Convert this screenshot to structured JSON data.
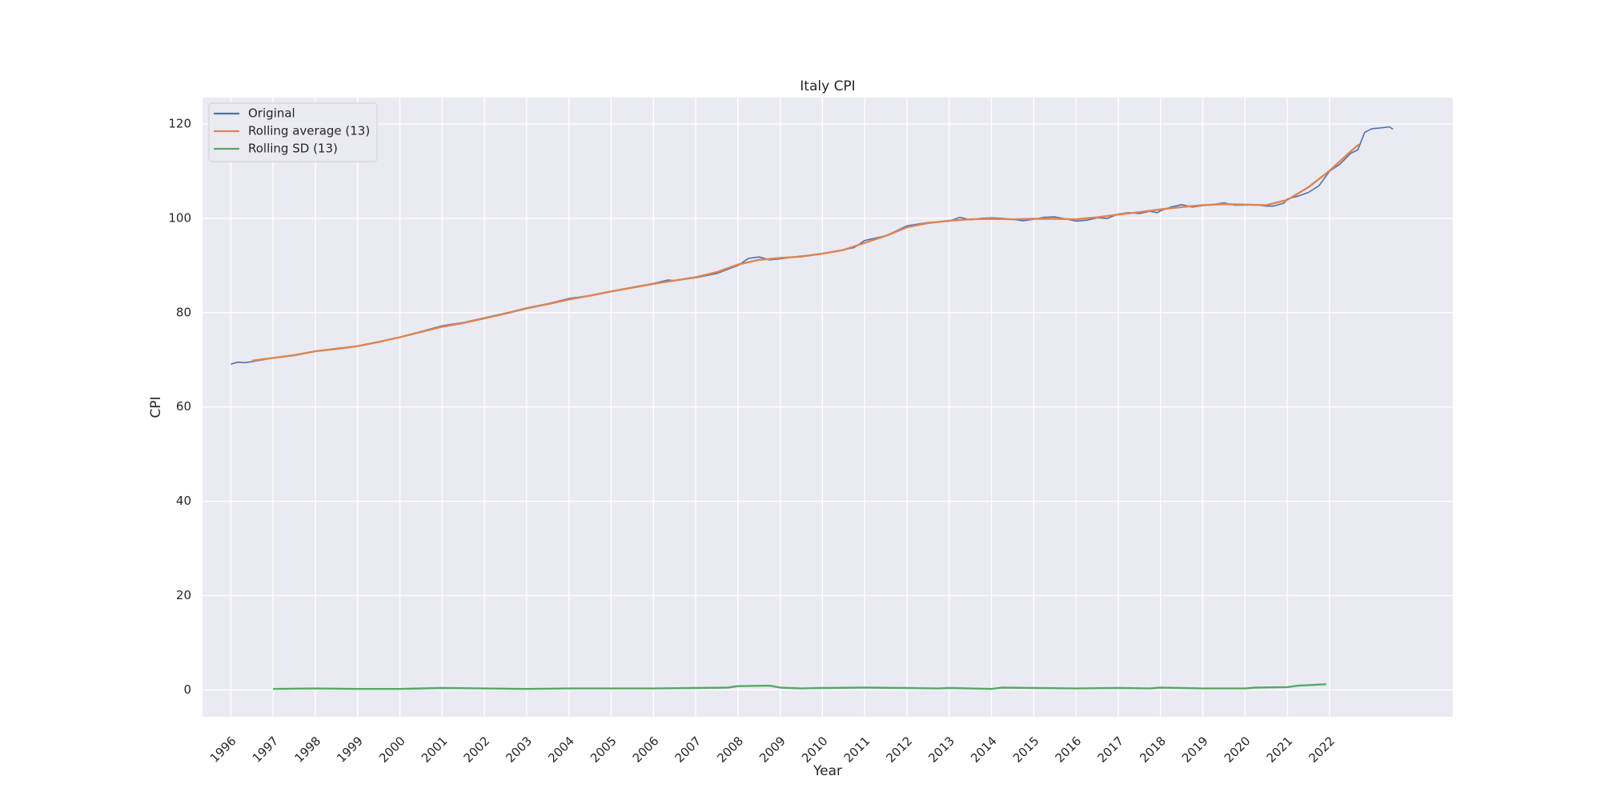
{
  "chart_data": {
    "type": "line",
    "title": "Italy CPI",
    "xlabel": "Year",
    "ylabel": "CPI",
    "xlim": [
      1995.33,
      2024.92
    ],
    "ylim": [
      -5.7,
      125.6
    ],
    "x_ticks": [
      "1996",
      "1997",
      "1998",
      "1999",
      "2000",
      "2001",
      "2002",
      "2003",
      "2004",
      "2005",
      "2006",
      "2007",
      "2008",
      "2009",
      "2010",
      "2011",
      "2012",
      "2013",
      "2014",
      "2015",
      "2016",
      "2017",
      "2018",
      "2019",
      "2020",
      "2021",
      "2022"
    ],
    "y_ticks": [
      0,
      20,
      40,
      60,
      80,
      100,
      120
    ],
    "grid": true,
    "legend_position": "top-left",
    "colors": {
      "original": "#4c72b0",
      "rolling_average": "#dd8452",
      "rolling_sd": "#55a868",
      "plot_bg": "#eaeaf2",
      "grid": "#ffffff"
    },
    "series": [
      {
        "name": "Original",
        "points": [
          [
            1996.0,
            69.1
          ],
          [
            1996.17,
            69.5
          ],
          [
            1996.33,
            69.4
          ],
          [
            1996.5,
            69.6
          ],
          [
            1996.75,
            70.0
          ],
          [
            1997.0,
            70.4
          ],
          [
            1997.5,
            70.9
          ],
          [
            1998.0,
            71.8
          ],
          [
            1998.5,
            72.4
          ],
          [
            1999.0,
            72.9
          ],
          [
            1999.5,
            73.8
          ],
          [
            2000.0,
            74.8
          ],
          [
            2000.5,
            76.0
          ],
          [
            2001.0,
            77.2
          ],
          [
            2001.5,
            77.9
          ],
          [
            2002.0,
            78.9
          ],
          [
            2002.5,
            79.9
          ],
          [
            2003.0,
            81.0
          ],
          [
            2003.5,
            81.9
          ],
          [
            2004.0,
            83.0
          ],
          [
            2004.5,
            83.6
          ],
          [
            2005.0,
            84.5
          ],
          [
            2005.5,
            85.4
          ],
          [
            2006.0,
            86.2
          ],
          [
            2006.33,
            86.9
          ],
          [
            2006.5,
            86.8
          ],
          [
            2007.0,
            87.4
          ],
          [
            2007.5,
            88.3
          ],
          [
            2008.0,
            90.0
          ],
          [
            2008.25,
            91.5
          ],
          [
            2008.5,
            91.8
          ],
          [
            2008.75,
            91.2
          ],
          [
            2009.0,
            91.4
          ],
          [
            2009.5,
            92.0
          ],
          [
            2010.0,
            92.5
          ],
          [
            2010.5,
            93.3
          ],
          [
            2010.75,
            93.8
          ],
          [
            2011.0,
            95.3
          ],
          [
            2011.5,
            96.3
          ],
          [
            2012.0,
            98.4
          ],
          [
            2012.5,
            99.1
          ],
          [
            2013.0,
            99.4
          ],
          [
            2013.25,
            100.2
          ],
          [
            2013.5,
            99.7
          ],
          [
            2013.75,
            100.0
          ],
          [
            2014.0,
            100.1
          ],
          [
            2014.25,
            100.0
          ],
          [
            2014.5,
            99.8
          ],
          [
            2014.75,
            99.5
          ],
          [
            2015.0,
            99.8
          ],
          [
            2015.25,
            100.2
          ],
          [
            2015.5,
            100.3
          ],
          [
            2015.75,
            99.9
          ],
          [
            2016.0,
            99.4
          ],
          [
            2016.25,
            99.6
          ],
          [
            2016.5,
            100.1
          ],
          [
            2016.75,
            100.0
          ],
          [
            2017.0,
            100.9
          ],
          [
            2017.25,
            101.2
          ],
          [
            2017.5,
            101.0
          ],
          [
            2017.75,
            101.5
          ],
          [
            2017.92,
            101.2
          ],
          [
            2018.0,
            101.6
          ],
          [
            2018.25,
            102.4
          ],
          [
            2018.5,
            102.9
          ],
          [
            2018.75,
            102.4
          ],
          [
            2019.0,
            102.7
          ],
          [
            2019.25,
            102.9
          ],
          [
            2019.5,
            103.3
          ],
          [
            2019.75,
            102.8
          ],
          [
            2020.0,
            102.8
          ],
          [
            2020.25,
            102.9
          ],
          [
            2020.5,
            102.6
          ],
          [
            2020.67,
            102.6
          ],
          [
            2020.92,
            103.2
          ],
          [
            2021.0,
            104.1
          ],
          [
            2021.25,
            104.7
          ],
          [
            2021.5,
            105.5
          ],
          [
            2021.75,
            106.9
          ],
          [
            2022.0,
            110.0
          ],
          [
            2022.25,
            111.5
          ],
          [
            2022.5,
            113.8
          ],
          [
            2022.67,
            114.5
          ],
          [
            2022.83,
            118.2
          ],
          [
            2023.0,
            119.0
          ],
          [
            2023.25,
            119.2
          ],
          [
            2023.42,
            119.4
          ],
          [
            2023.5,
            118.9
          ]
        ]
      },
      {
        "name": "Rolling average (13)",
        "points": [
          [
            1996.5,
            69.8
          ],
          [
            1997.0,
            70.4
          ],
          [
            1997.5,
            71.0
          ],
          [
            1998.0,
            71.8
          ],
          [
            1998.5,
            72.3
          ],
          [
            1999.0,
            72.9
          ],
          [
            1999.5,
            73.8
          ],
          [
            2000.0,
            74.8
          ],
          [
            2000.5,
            75.9
          ],
          [
            2001.0,
            77.0
          ],
          [
            2001.5,
            77.8
          ],
          [
            2002.0,
            78.8
          ],
          [
            2002.5,
            79.8
          ],
          [
            2003.0,
            80.9
          ],
          [
            2003.5,
            81.8
          ],
          [
            2004.0,
            82.8
          ],
          [
            2004.5,
            83.6
          ],
          [
            2005.0,
            84.5
          ],
          [
            2005.5,
            85.3
          ],
          [
            2006.0,
            86.1
          ],
          [
            2006.5,
            86.8
          ],
          [
            2007.0,
            87.5
          ],
          [
            2007.5,
            88.6
          ],
          [
            2008.0,
            90.2
          ],
          [
            2008.5,
            91.2
          ],
          [
            2009.0,
            91.6
          ],
          [
            2009.5,
            91.9
          ],
          [
            2010.0,
            92.5
          ],
          [
            2010.5,
            93.3
          ],
          [
            2011.0,
            94.8
          ],
          [
            2011.5,
            96.3
          ],
          [
            2012.0,
            98.1
          ],
          [
            2012.5,
            99.0
          ],
          [
            2013.0,
            99.5
          ],
          [
            2013.5,
            99.8
          ],
          [
            2014.0,
            99.9
          ],
          [
            2014.5,
            99.8
          ],
          [
            2015.0,
            99.9
          ],
          [
            2015.5,
            99.9
          ],
          [
            2016.0,
            99.8
          ],
          [
            2016.5,
            100.2
          ],
          [
            2017.0,
            100.8
          ],
          [
            2017.5,
            101.3
          ],
          [
            2018.0,
            101.9
          ],
          [
            2018.5,
            102.4
          ],
          [
            2019.0,
            102.8
          ],
          [
            2019.5,
            103.0
          ],
          [
            2020.0,
            102.9
          ],
          [
            2020.5,
            102.8
          ],
          [
            2021.0,
            103.9
          ],
          [
            2021.5,
            106.6
          ],
          [
            2022.0,
            110.1
          ],
          [
            2022.5,
            114.2
          ],
          [
            2022.7,
            115.7
          ]
        ]
      },
      {
        "name": "Rolling SD (13)",
        "points": [
          [
            1997.0,
            0.2
          ],
          [
            1998.0,
            0.3
          ],
          [
            1999.0,
            0.2
          ],
          [
            2000.0,
            0.2
          ],
          [
            2001.0,
            0.4
          ],
          [
            2002.0,
            0.3
          ],
          [
            2003.0,
            0.2
          ],
          [
            2004.0,
            0.3
          ],
          [
            2005.0,
            0.3
          ],
          [
            2006.0,
            0.3
          ],
          [
            2007.0,
            0.4
          ],
          [
            2007.75,
            0.5
          ],
          [
            2008.0,
            0.8
          ],
          [
            2008.75,
            0.9
          ],
          [
            2009.0,
            0.5
          ],
          [
            2009.5,
            0.3
          ],
          [
            2010.0,
            0.4
          ],
          [
            2011.0,
            0.5
          ],
          [
            2012.0,
            0.4
          ],
          [
            2012.75,
            0.3
          ],
          [
            2013.0,
            0.4
          ],
          [
            2014.0,
            0.2
          ],
          [
            2014.25,
            0.5
          ],
          [
            2015.0,
            0.4
          ],
          [
            2016.0,
            0.3
          ],
          [
            2017.0,
            0.4
          ],
          [
            2017.75,
            0.3
          ],
          [
            2018.0,
            0.5
          ],
          [
            2019.0,
            0.3
          ],
          [
            2020.0,
            0.3
          ],
          [
            2020.25,
            0.5
          ],
          [
            2021.0,
            0.6
          ],
          [
            2021.25,
            0.9
          ],
          [
            2021.92,
            1.2
          ]
        ]
      }
    ]
  }
}
